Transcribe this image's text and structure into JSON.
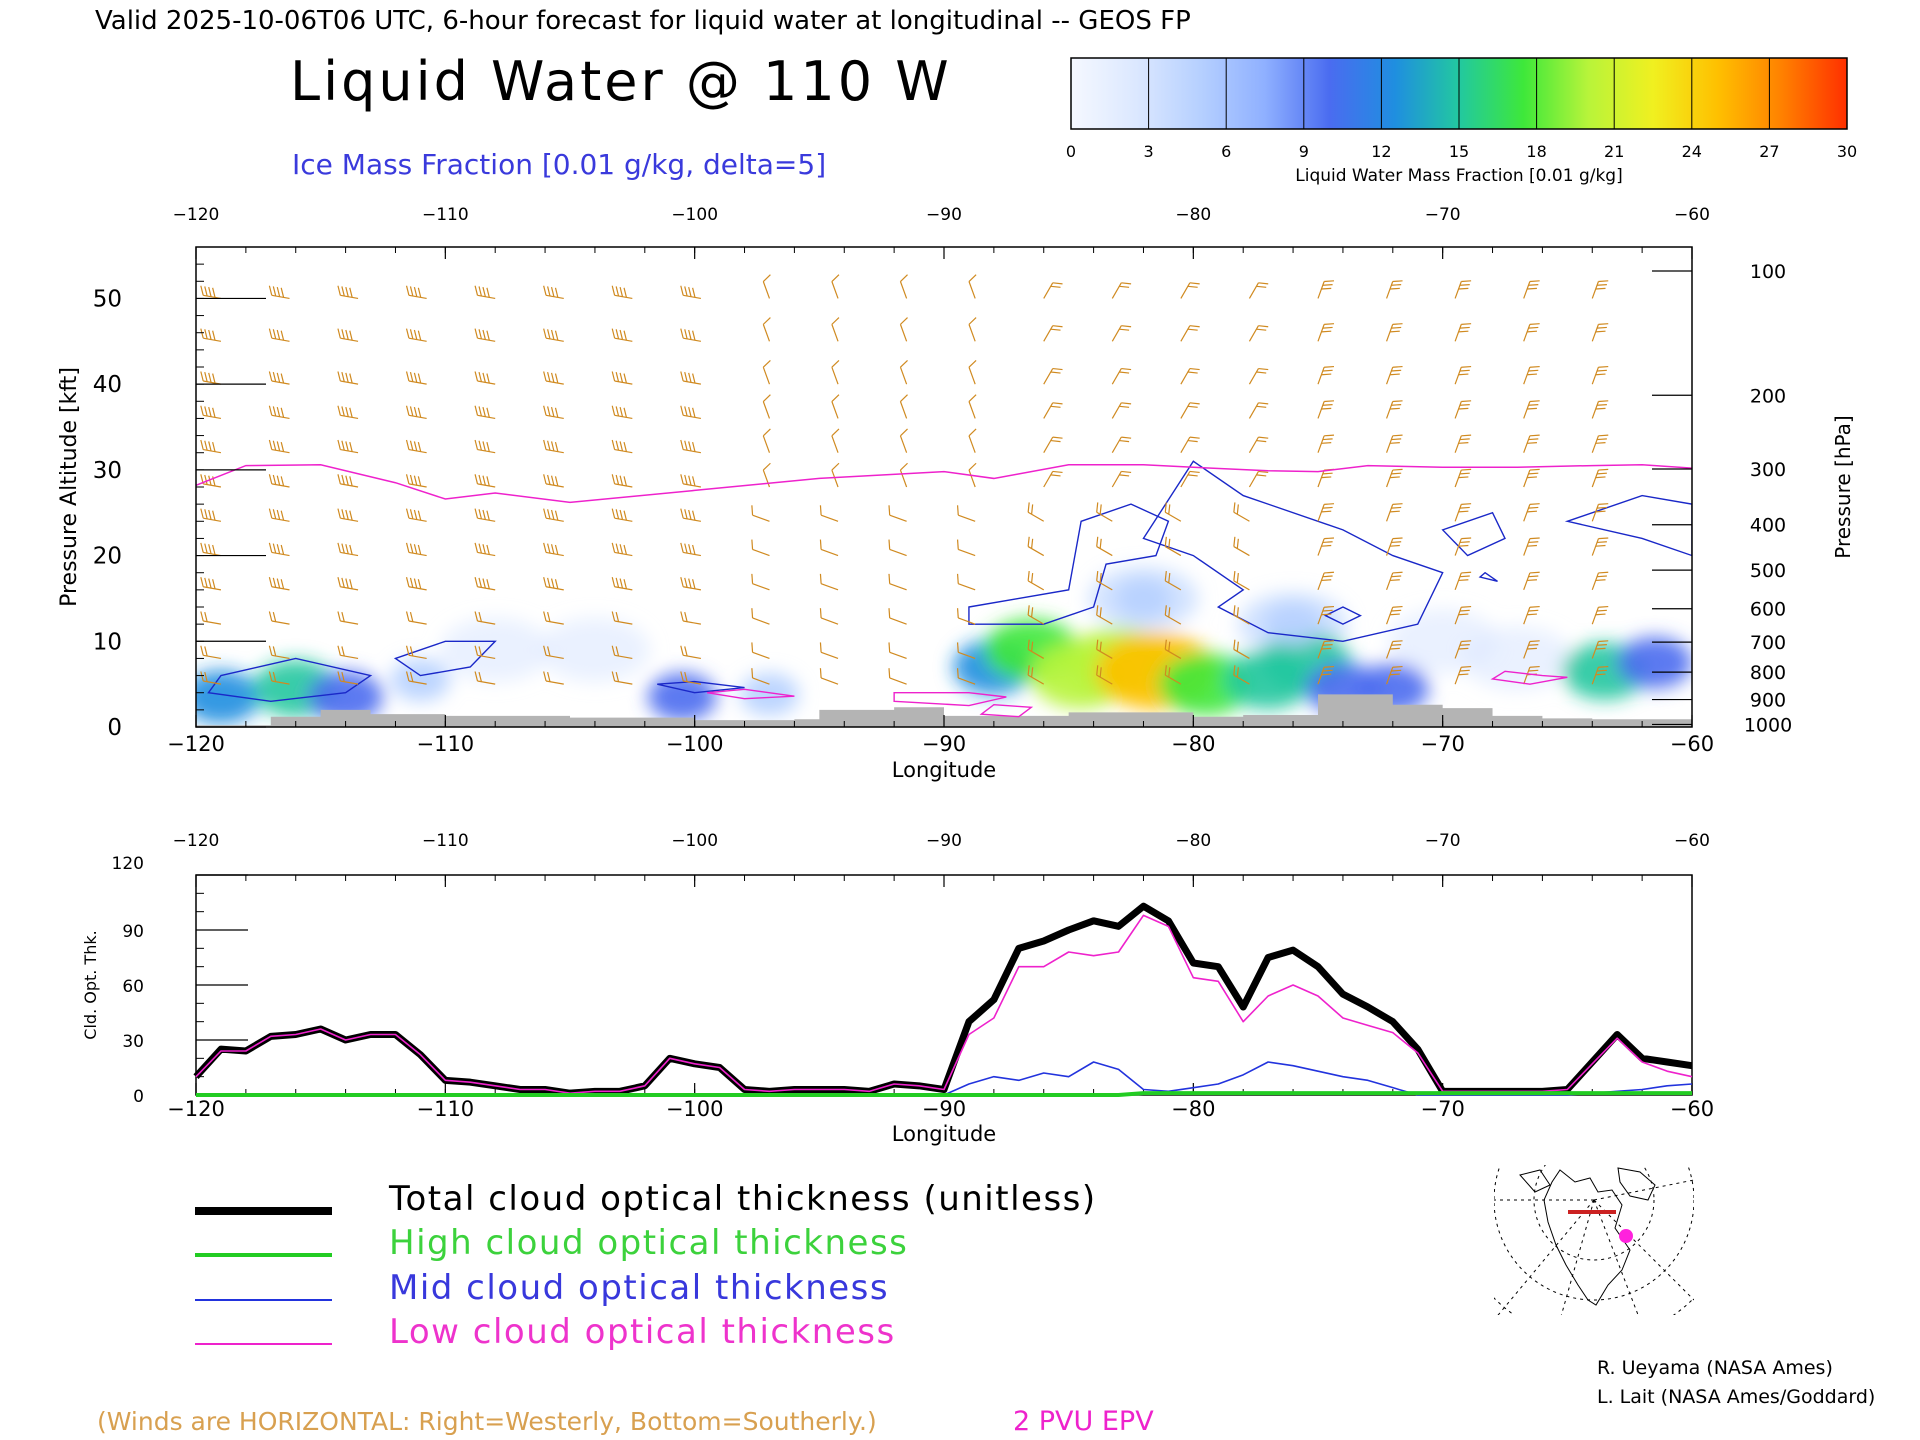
{
  "header": {
    "valid_line": "Valid 2025-10-06T06 UTC, 6-hour forecast for liquid water at longitudinal -- GEOS FP",
    "main_title": "Liquid Water @ 110 W",
    "subtitle": "Ice Mass Fraction [0.01 g/kg, delta=5]"
  },
  "colorbar": {
    "label": "Liquid Water Mass Fraction [0.01 g/kg]",
    "ticks": [
      "0",
      "3",
      "6",
      "9",
      "12",
      "15",
      "18",
      "21",
      "24",
      "27",
      "30"
    ],
    "colors": [
      "#f5f8ff",
      "#dce8ff",
      "#b6d0ff",
      "#8fb0ff",
      "#4a6cf0",
      "#1f8ee0",
      "#22c8a0",
      "#3ee83a",
      "#b8f43a",
      "#f0f020",
      "#ffc000",
      "#ff8000",
      "#ff3000"
    ]
  },
  "credits": {
    "line1": "R. Ueyama (NASA Ames)",
    "line2": "L. Lait (NASA Ames/Goddard)"
  },
  "footer": {
    "winds_note": "(Winds are HORIZONTAL: Right=Westerly, Bottom=Southerly.)",
    "pvu_label": "2 PVU EPV"
  },
  "legend": [
    {
      "label": "Total cloud optical thickness (unitless)",
      "color": "#000000"
    },
    {
      "label": "High cloud optical thickness",
      "color": "#22cc22"
    },
    {
      "label": "Mid cloud optical thickness",
      "color": "#2233dd"
    },
    {
      "label": "Low cloud optical thickness",
      "color": "#ee22cc"
    }
  ],
  "colors": {
    "wind": "#d08a20",
    "tropopause": "#ee22cc",
    "ice_contour": "#1a28c8",
    "terrain": "#b4b4b4"
  },
  "chart_data": [
    {
      "type": "heatmap",
      "title": "Liquid Water @ 110 W",
      "xlabel": "Longitude",
      "ylabel": "Pressure Altitude [kft]",
      "ylabel_right": "Pressure [hPa]",
      "xlim": [
        -120,
        -60
      ],
      "ylim": [
        0,
        56
      ],
      "x_ticks": [
        "−120",
        "−110",
        "−100",
        "−90",
        "−80",
        "−70",
        "−60"
      ],
      "y_ticks": [
        "0",
        "10",
        "20",
        "30",
        "40",
        "50"
      ],
      "pressure_ticks": [
        {
          "hPa": "100",
          "kft": 53.2
        },
        {
          "hPa": "200",
          "kft": 38.7
        },
        {
          "hPa": "300",
          "kft": 30.1
        },
        {
          "hPa": "400",
          "kft": 23.6
        },
        {
          "hPa": "500",
          "kft": 18.3
        },
        {
          "hPa": "600",
          "kft": 13.8
        },
        {
          "hPa": "700",
          "kft": 9.9
        },
        {
          "hPa": "800",
          "kft": 6.4
        },
        {
          "hPa": "900",
          "kft": 3.2
        },
        {
          "hPa": "1000",
          "kft": 0.3
        }
      ],
      "liquid_water_blobs": [
        {
          "lon": -119,
          "kft": 3.5,
          "value": 12
        },
        {
          "lon": -116,
          "kft": 4.5,
          "value": 14
        },
        {
          "lon": -114,
          "kft": 3.5,
          "value": 11
        },
        {
          "lon": -111,
          "kft": 5.5,
          "value": 6
        },
        {
          "lon": -100.5,
          "kft": 3.5,
          "value": 9
        },
        {
          "lon": -97,
          "kft": 3.8,
          "value": 6
        },
        {
          "lon": -88,
          "kft": 7,
          "value": 13
        },
        {
          "lon": -86.5,
          "kft": 9,
          "value": 17
        },
        {
          "lon": -84.5,
          "kft": 6,
          "value": 19
        },
        {
          "lon": -83,
          "kft": 7.5,
          "value": 21
        },
        {
          "lon": -81.5,
          "kft": 6.5,
          "value": 25
        },
        {
          "lon": -79.5,
          "kft": 5,
          "value": 17
        },
        {
          "lon": -77,
          "kft": 5.5,
          "value": 15
        },
        {
          "lon": -75.5,
          "kft": 7.5,
          "value": 16
        },
        {
          "lon": -74,
          "kft": 4.5,
          "value": 11
        },
        {
          "lon": -72,
          "kft": 4.5,
          "value": 10
        },
        {
          "lon": -63.5,
          "kft": 6.5,
          "value": 14
        },
        {
          "lon": -61.5,
          "kft": 7.5,
          "value": 11
        },
        {
          "lon": -82,
          "kft": 15,
          "value": 5
        },
        {
          "lon": -76,
          "kft": 12,
          "value": 6
        }
      ],
      "tropopause_2pvu": {
        "lon": [
          -120,
          -118,
          -115,
          -112,
          -110,
          -108,
          -105,
          -100,
          -95,
          -90,
          -88,
          -85,
          -82,
          -80,
          -77,
          -75,
          -73,
          -70,
          -67,
          -64,
          -62,
          -60
        ],
        "kft": [
          28.2,
          30.5,
          30.6,
          28.5,
          26.6,
          27.3,
          26.2,
          27.6,
          29,
          29.8,
          29,
          30.6,
          30.6,
          30.3,
          29.9,
          29.8,
          30.5,
          30.3,
          30.3,
          30.5,
          30.6,
          30.2
        ]
      },
      "terrain": {
        "lon": [
          -120,
          -117,
          -115,
          -113,
          -110,
          -105,
          -100,
          -96,
          -95,
          -92,
          -90,
          -85,
          -80,
          -78,
          -75,
          -72,
          -70,
          -68,
          -66,
          -64,
          -60
        ],
        "kft": [
          0.2,
          1.2,
          2.0,
          1.5,
          1.3,
          1.1,
          0.8,
          0.9,
          2.0,
          2.3,
          1.3,
          1.7,
          1.2,
          1.4,
          3.8,
          2.6,
          2.2,
          1.3,
          1.0,
          0.9,
          0.8
        ]
      }
    },
    {
      "type": "line",
      "xlabel": "Longitude",
      "ylabel": "Cld. Opt. Thk.",
      "xlim": [
        -120,
        -60
      ],
      "ylim": [
        0,
        120
      ],
      "x_ticks": [
        "−120",
        "−110",
        "−100",
        "−90",
        "−80",
        "−70",
        "−60"
      ],
      "y_ticks": [
        "0",
        "30",
        "60",
        "90",
        "120"
      ],
      "x": [
        -120,
        -119,
        -118,
        -117,
        -116,
        -115,
        -114,
        -113,
        -112,
        -111,
        -110,
        -109,
        -108,
        -107,
        -106,
        -105,
        -104,
        -103,
        -102,
        -101,
        -100,
        -99,
        -98,
        -97,
        -96,
        -95,
        -94,
        -93,
        -92,
        -91,
        -90,
        -89,
        -88,
        -87,
        -86,
        -85,
        -84,
        -83,
        -82,
        -81,
        -80,
        -79,
        -78,
        -77,
        -76,
        -75,
        -74,
        -73,
        -72,
        -71,
        -70,
        -69,
        -68,
        -67,
        -66,
        -65,
        -64,
        -63,
        -62,
        -61,
        -60
      ],
      "series": [
        {
          "name": "Total cloud optical thickness (unitless)",
          "values": [
            10,
            25,
            24,
            32,
            33,
            36,
            30,
            33,
            33,
            22,
            8,
            7,
            5,
            3,
            3,
            1,
            2,
            2,
            5,
            20,
            17,
            15,
            3,
            2,
            3,
            3,
            3,
            2,
            6,
            5,
            3,
            40,
            52,
            80,
            84,
            90,
            95,
            92,
            103,
            95,
            72,
            70,
            48,
            75,
            79,
            70,
            55,
            48,
            40,
            25,
            2,
            2,
            2,
            2,
            2,
            3,
            18,
            33,
            20,
            18,
            16
          ]
        },
        {
          "name": "High cloud optical thickness",
          "values": [
            0,
            0,
            0,
            0,
            0,
            0,
            0,
            0,
            0,
            0,
            0,
            0,
            0,
            0,
            0,
            0,
            0,
            0,
            0,
            0,
            0,
            0,
            0,
            0,
            0,
            0,
            0,
            0,
            0,
            0,
            0,
            0,
            0,
            0,
            0,
            0,
            0,
            0,
            1,
            1,
            1,
            1,
            1,
            1,
            1,
            1,
            1,
            1,
            1,
            1,
            1,
            1,
            1,
            1,
            1,
            1,
            1,
            1,
            1,
            1,
            1
          ]
        },
        {
          "name": "Mid cloud optical thickness",
          "values": [
            0,
            0,
            0,
            0,
            0,
            0,
            0,
            0,
            0,
            0,
            0,
            0,
            0,
            0,
            0,
            0,
            0,
            0,
            0,
            0,
            0,
            0,
            0,
            0,
            0,
            0,
            0,
            0,
            0,
            0,
            0,
            6,
            10,
            8,
            12,
            10,
            18,
            14,
            3,
            2,
            4,
            6,
            11,
            18,
            16,
            13,
            10,
            8,
            4,
            0,
            0,
            0,
            0,
            0,
            0,
            0,
            1,
            2,
            3,
            5,
            6
          ]
        },
        {
          "name": "Low cloud optical thickness",
          "values": [
            10,
            24,
            24,
            32,
            33,
            36,
            30,
            33,
            33,
            22,
            8,
            7,
            5,
            3,
            3,
            1,
            2,
            2,
            5,
            20,
            17,
            15,
            3,
            2,
            3,
            3,
            3,
            2,
            6,
            5,
            3,
            33,
            42,
            70,
            70,
            78,
            76,
            78,
            98,
            92,
            64,
            62,
            40,
            54,
            60,
            54,
            42,
            38,
            34,
            23,
            2,
            2,
            2,
            2,
            2,
            3,
            17,
            31,
            18,
            13,
            10
          ]
        }
      ]
    }
  ]
}
